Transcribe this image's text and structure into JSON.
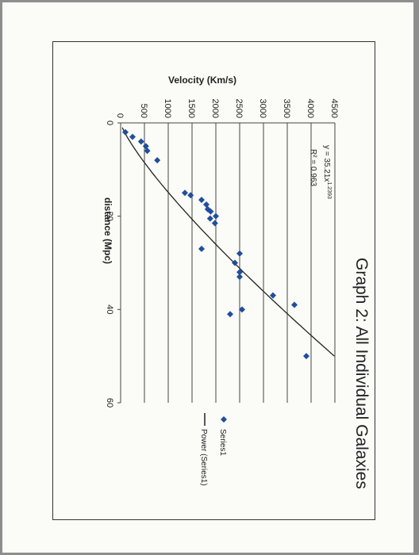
{
  "chart_data": {
    "type": "scatter",
    "title": "Graph 2: All Individual Galaxies",
    "xlabel": "distance (Mpc)",
    "ylabel": "Velocity (Km/s)",
    "xlim": [
      0,
      60
    ],
    "ylim": [
      0,
      4500
    ],
    "x_ticks": [
      "0",
      "20",
      "40",
      "60"
    ],
    "y_ticks": [
      "0",
      "500",
      "1000",
      "1500",
      "2000",
      "2500",
      "3000",
      "3500",
      "4000",
      "4500"
    ],
    "grid": "horizontal major gridlines",
    "legend_position": "right",
    "equation": "y = 35.21x",
    "equation_exponent": "1.2393",
    "r_squared": "R² = 0.963",
    "series": [
      {
        "name": "Series1",
        "marker": "diamond",
        "color": "#1f4e9c",
        "points": [
          [
            2,
            100
          ],
          [
            3,
            250
          ],
          [
            4,
            430
          ],
          [
            5,
            530
          ],
          [
            6,
            560
          ],
          [
            8,
            770
          ],
          [
            15,
            1350
          ],
          [
            15.5,
            1470
          ],
          [
            16.5,
            1700
          ],
          [
            17.5,
            1800
          ],
          [
            18.5,
            1830
          ],
          [
            19,
            1890
          ],
          [
            20,
            2000
          ],
          [
            20.5,
            1880
          ],
          [
            21.5,
            1980
          ],
          [
            27,
            1700
          ],
          [
            28,
            2500
          ],
          [
            30,
            2400
          ],
          [
            32,
            2500
          ],
          [
            33,
            2500
          ],
          [
            37,
            3200
          ],
          [
            39,
            3650
          ],
          [
            40,
            2550
          ],
          [
            41,
            2300
          ],
          [
            50,
            3900
          ]
        ]
      },
      {
        "name": "Power (Series1)",
        "line": "solid",
        "color": "#222222",
        "coefficient": 35.21,
        "exponent": 1.2393
      }
    ],
    "legend": [
      "Series1",
      "Power (Series1)"
    ]
  }
}
